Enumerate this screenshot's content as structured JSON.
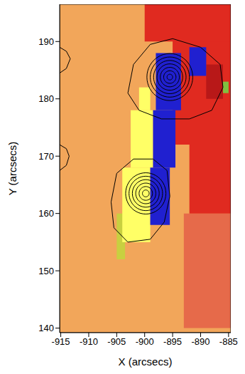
{
  "chart_data": {
    "type": "image",
    "xlabel": "X (arcsecs)",
    "ylabel": "Y (arcsecs)",
    "xlim": [
      -915.2,
      -884.6
    ],
    "ylim": [
      139.2,
      196.5
    ],
    "xticks": [
      -915,
      -910,
      -905,
      -900,
      -895,
      -890,
      -885
    ],
    "yticks": [
      140,
      150,
      160,
      170,
      180,
      190
    ],
    "color": "#000000",
    "regions": [
      {
        "color": "#f2a65a",
        "x": [
          -915.2,
          -884.6
        ],
        "y": [
          139.2,
          196.5
        ]
      },
      {
        "color": "#e66a4a",
        "x": [
          -893,
          -884.6
        ],
        "y": [
          140,
          160
        ]
      },
      {
        "color": "#e02a20",
        "x": [
          -892,
          -884.6
        ],
        "y": [
          160,
          172
        ]
      },
      {
        "color": "#e02a20",
        "x": [
          -895,
          -884.6
        ],
        "y": [
          172,
          196.5
        ]
      },
      {
        "color": "#e02a20",
        "x": [
          -900,
          -884.6
        ],
        "y": [
          190,
          196.5
        ]
      },
      {
        "color": "#b81818",
        "x": [
          -889,
          -886
        ],
        "y": [
          180,
          186
        ]
      },
      {
        "color": "#80c040",
        "x": [
          -886,
          -885
        ],
        "y": [
          181,
          183
        ]
      },
      {
        "color": "#c8d040",
        "x": [
          -905,
          -903.5
        ],
        "y": [
          152,
          160
        ]
      },
      {
        "color": "#ffff66",
        "x": [
          -904,
          -899
        ],
        "y": [
          155,
          168
        ]
      },
      {
        "color": "#ffff66",
        "x": [
          -902.5,
          -898.5
        ],
        "y": [
          168,
          178
        ]
      },
      {
        "color": "#ffff66",
        "x": [
          -901,
          -899
        ],
        "y": [
          178,
          182
        ]
      },
      {
        "color": "#2020d0",
        "x": [
          -898,
          -893.5
        ],
        "y": [
          178,
          188
        ]
      },
      {
        "color": "#2020d0",
        "x": [
          -898.5,
          -894.5
        ],
        "y": [
          168,
          178
        ]
      },
      {
        "color": "#2020d0",
        "x": [
          -899,
          -895.5
        ],
        "y": [
          158,
          168
        ]
      },
      {
        "color": "#2020d0",
        "x": [
          -892,
          -889
        ],
        "y": [
          184,
          189
        ]
      }
    ],
    "contours": [
      {
        "x": [
          -903,
          -902,
          -899,
          -895,
          -890,
          -886.5,
          -886,
          -888,
          -892,
          -897,
          -901,
          -903
        ],
        "y": [
          181,
          186,
          189.5,
          190.5,
          189,
          186,
          182,
          178,
          176.5,
          176.5,
          178,
          181
        ]
      },
      {
        "x": [
          -906,
          -905,
          -902,
          -898.5,
          -896,
          -895.5,
          -896.5,
          -899,
          -903,
          -905.5,
          -906
        ],
        "y": [
          162,
          167,
          169.5,
          169.5,
          167.5,
          163,
          158.5,
          155.5,
          155,
          157.5,
          162
        ]
      },
      {
        "x": [
          -915.2,
          -914,
          -913.3,
          -914,
          -915.2
        ],
        "y": [
          189,
          188.3,
          187,
          185.3,
          184.5
        ]
      },
      {
        "x": [
          -915.2,
          -914,
          -913.5,
          -914,
          -915.2
        ],
        "y": [
          172,
          171.3,
          170,
          168.4,
          167.5
        ]
      }
    ],
    "rings": [
      {
        "center": [
          -899.8,
          163.5
        ],
        "radii": [
          0.6,
          1.2,
          1.8,
          2.4,
          3.0,
          3.6
        ]
      },
      {
        "center": [
          -895.5,
          183.8
        ],
        "radii": [
          0.5,
          1.1,
          1.7,
          2.3,
          2.9,
          3.5,
          4.1
        ]
      }
    ]
  }
}
